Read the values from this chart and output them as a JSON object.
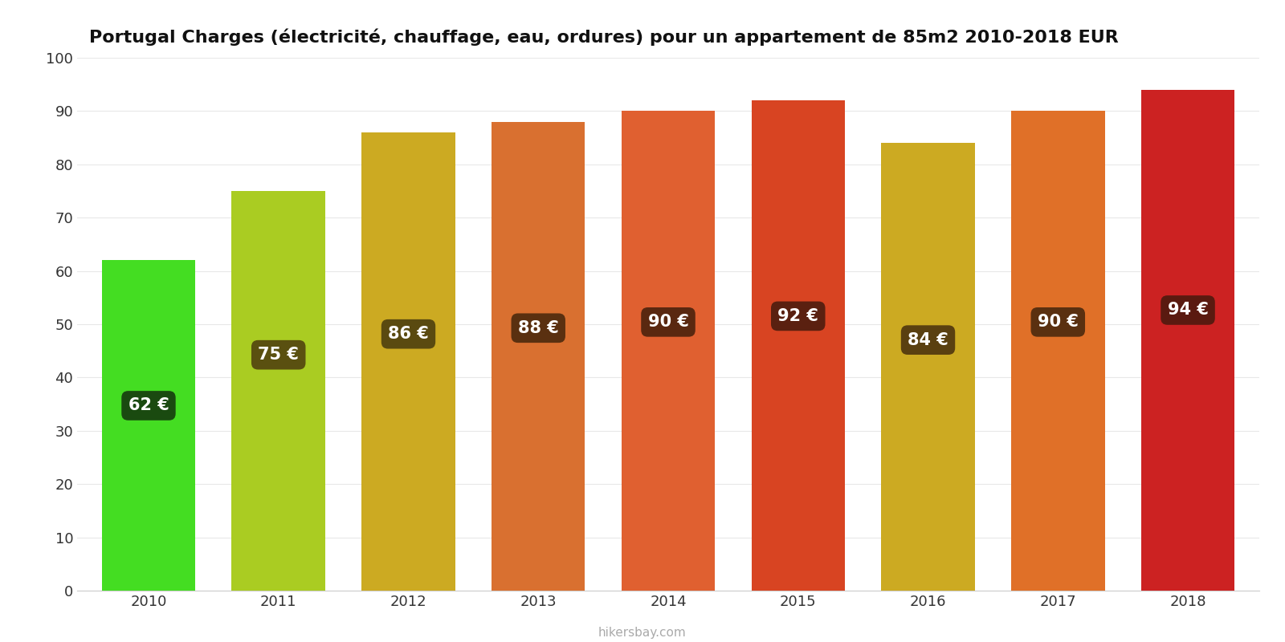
{
  "title": "Portugal Charges (électricité, chauffage, eau, ordures) pour un appartement de 85m2 2010-2018 EUR",
  "years": [
    2010,
    2011,
    2012,
    2013,
    2014,
    2015,
    2016,
    2017,
    2018
  ],
  "values": [
    62,
    75,
    86,
    88,
    90,
    92,
    84,
    90,
    94
  ],
  "bar_colors": [
    "#44dd22",
    "#aacc22",
    "#ccaa22",
    "#d97030",
    "#e06030",
    "#d84422",
    "#ccaa22",
    "#e07028",
    "#cc2222"
  ],
  "label_bg_colors": [
    "#1a4a10",
    "#5a5010",
    "#5a4a10",
    "#5a3010",
    "#5a2810",
    "#5a2010",
    "#5a4010",
    "#5a3010",
    "#5a1a10"
  ],
  "annotation_labels": [
    "62 €",
    "75 €",
    "86 €",
    "88 €",
    "90 €",
    "92 €",
    "84 €",
    "90 €",
    "94 €"
  ],
  "annotation_y_fracs": [
    0.56,
    0.59,
    0.56,
    0.56,
    0.56,
    0.56,
    0.56,
    0.56,
    0.56
  ],
  "ylim": [
    0,
    100
  ],
  "yticks": [
    0,
    10,
    20,
    30,
    40,
    50,
    60,
    70,
    80,
    90,
    100
  ],
  "background_color": "#ffffff",
  "grid_color": "#e8e8e8",
  "watermark": "hikersbay.com",
  "title_fontsize": 16,
  "bar_width": 0.72
}
